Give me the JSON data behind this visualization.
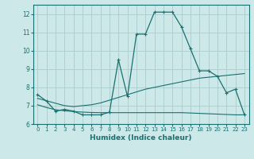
{
  "title": "",
  "xlabel": "Humidex (Indice chaleur)",
  "xlim": [
    -0.5,
    23.5
  ],
  "ylim": [
    6.0,
    12.5
  ],
  "yticks": [
    6,
    7,
    8,
    9,
    10,
    11,
    12
  ],
  "xticks": [
    0,
    1,
    2,
    3,
    4,
    5,
    6,
    7,
    8,
    9,
    10,
    11,
    12,
    13,
    14,
    15,
    16,
    17,
    18,
    19,
    20,
    21,
    22,
    23
  ],
  "bg_color": "#cce8e8",
  "grid_color": "#aacccc",
  "line_color": "#1a7070",
  "line1_x": [
    0,
    1,
    2,
    3,
    4,
    5,
    6,
    7,
    8,
    9,
    10,
    11,
    12,
    13,
    14,
    15,
    16,
    17,
    18,
    19,
    20,
    21,
    22,
    23
  ],
  "line1_y": [
    7.6,
    7.25,
    6.7,
    6.8,
    6.7,
    6.5,
    6.5,
    6.5,
    6.65,
    9.5,
    7.5,
    10.9,
    10.9,
    12.1,
    12.1,
    12.1,
    11.3,
    10.1,
    8.9,
    8.9,
    8.6,
    7.7,
    7.9,
    6.5
  ],
  "line2_x": [
    0,
    3,
    4,
    5,
    6,
    7,
    8,
    9,
    10,
    11,
    12,
    13,
    14,
    15,
    16,
    17,
    18,
    19,
    20,
    21,
    22,
    23
  ],
  "line2_y": [
    7.4,
    7.0,
    6.95,
    7.0,
    7.05,
    7.15,
    7.3,
    7.45,
    7.6,
    7.75,
    7.9,
    8.0,
    8.1,
    8.2,
    8.3,
    8.4,
    8.5,
    8.55,
    8.6,
    8.65,
    8.7,
    8.75
  ],
  "line3_x": [
    0,
    1,
    2,
    3,
    4,
    5,
    6,
    7,
    8,
    9,
    10,
    11,
    12,
    13,
    14,
    15,
    16,
    17,
    18,
    19,
    20,
    21,
    22,
    23
  ],
  "line3_y": [
    7.05,
    6.9,
    6.78,
    6.72,
    6.68,
    6.65,
    6.63,
    6.62,
    6.62,
    6.62,
    6.62,
    6.62,
    6.62,
    6.62,
    6.62,
    6.62,
    6.62,
    6.6,
    6.58,
    6.56,
    6.54,
    6.52,
    6.5,
    6.5
  ]
}
